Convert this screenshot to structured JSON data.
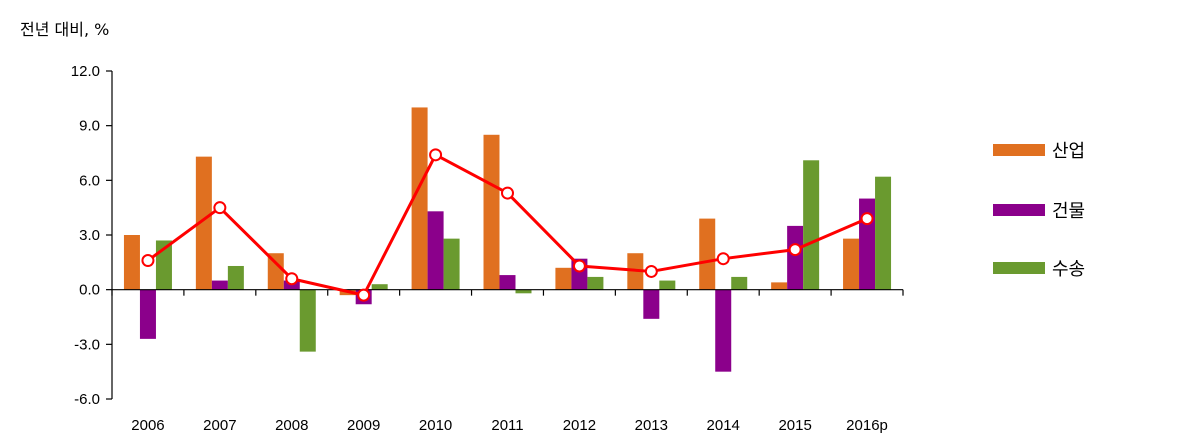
{
  "chart_data": {
    "type": "bar",
    "title": "",
    "ylabel": "전년 대비, %",
    "xlabel": "",
    "categories": [
      "2006",
      "2007",
      "2008",
      "2009",
      "2010",
      "2011",
      "2012",
      "2013",
      "2014",
      "2015",
      "2016p"
    ],
    "ylim": [
      -6.0,
      12.0
    ],
    "yticks": [
      "12.0",
      "9.0",
      "6.0",
      "3.0",
      "0.0",
      "-3.0",
      "-6.0"
    ],
    "grid": false,
    "legend_position": "right",
    "series": [
      {
        "name": "산업",
        "type": "bar",
        "color": "#E07020",
        "values": [
          3.0,
          7.3,
          2.0,
          -0.3,
          10.0,
          8.5,
          1.2,
          2.0,
          3.9,
          0.4,
          2.8
        ]
      },
      {
        "name": "건물",
        "type": "bar",
        "color": "#8B008B",
        "values": [
          -2.7,
          0.5,
          0.5,
          -0.8,
          4.3,
          0.8,
          1.7,
          -1.6,
          -4.5,
          3.5,
          5.0
        ]
      },
      {
        "name": "수송",
        "type": "bar",
        "color": "#6A9A2F",
        "values": [
          2.7,
          1.3,
          -3.4,
          0.3,
          2.8,
          -0.2,
          0.7,
          0.5,
          0.7,
          7.1,
          6.2
        ]
      },
      {
        "name": "",
        "type": "line",
        "color": "#FF0000",
        "values": [
          1.6,
          4.5,
          0.6,
          -0.3,
          7.4,
          5.3,
          1.3,
          1.0,
          1.7,
          2.2,
          3.9
        ]
      }
    ]
  }
}
